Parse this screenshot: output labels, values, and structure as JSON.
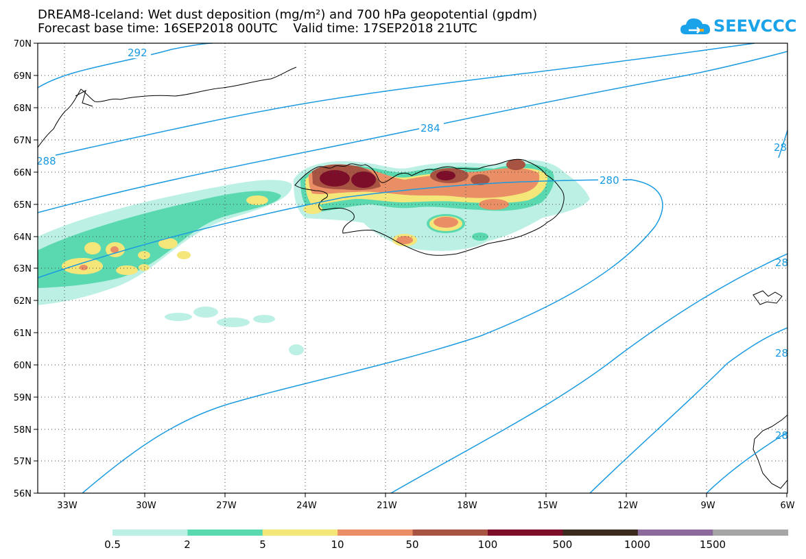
{
  "header": {
    "title": "DREAM8-Iceland: Wet dust deposition (mg/m²) and 700 hPa geopotential (gpdm)",
    "subtitle": "Forecast base time: 16SEP2018 00UTC    Valid time: 17SEP2018 21UTC"
  },
  "logo": {
    "text": "SEEVCCC",
    "icon": "cloud-icon",
    "color": "#1aa3e8"
  },
  "map": {
    "lon_range": [
      -34,
      -6
    ],
    "lat_range": [
      56,
      70
    ],
    "lon_ticks": [
      "33W",
      "30W",
      "27W",
      "24W",
      "21W",
      "18W",
      "15W",
      "12W",
      "9W",
      "6W"
    ],
    "lat_ticks": [
      "70N",
      "69N",
      "68N",
      "67N",
      "66N",
      "65N",
      "64N",
      "63N",
      "62N",
      "61N",
      "60N",
      "59N",
      "58N",
      "57N",
      "56N"
    ],
    "grid": true,
    "contour_color": "#1a9ae0",
    "contour_labels": [
      "292",
      "288",
      "284",
      "280",
      "28",
      "28",
      "28",
      "28"
    ]
  },
  "colorbar": {
    "labels": [
      "0.5",
      "2",
      "5",
      "10",
      "50",
      "100",
      "500",
      "1000",
      "1500"
    ],
    "colors": [
      "#bdf0e4",
      "#5ad9b0",
      "#f5e67a",
      "#ea8e66",
      "#a85443",
      "#7c0e2a",
      "#3b2a1e",
      "#8c6a9c",
      "#a6a6a6"
    ]
  }
}
